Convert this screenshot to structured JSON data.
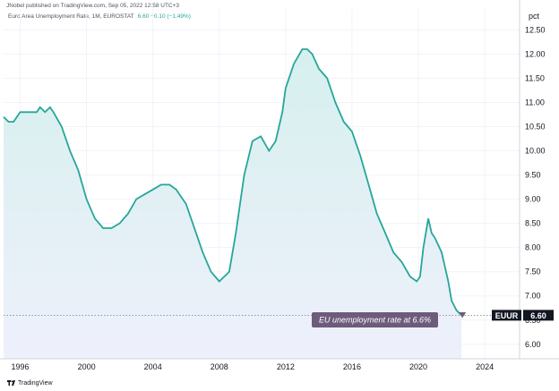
{
  "header": {
    "published": "JNobel published on TradingView.com, Sep 05, 2022 12:58 UTC+3",
    "legend_title": "Euro Area Unemployment Rate, 1M, EUROSTAT",
    "legend_values": "6.60  −0.10 (−1.49%)"
  },
  "footer": {
    "brand": "TradingView",
    "brand_icon": "tradingview-logo-icon"
  },
  "colors": {
    "line": "#26a69a",
    "fill_top": "#d6f0ee",
    "fill_bottom": "#eef0fb",
    "badge_bg": "#131722",
    "annotation_bg": "#6c5b7b"
  },
  "chart_data": {
    "type": "area",
    "ylabel": "pct",
    "ylim": [
      5.7,
      12.6
    ],
    "xlim": [
      1995.0,
      2026.1
    ],
    "y_ticks": [
      "6.00",
      "6.50",
      "7.00",
      "7.50",
      "8.00",
      "8.50",
      "9.00",
      "9.50",
      "10.00",
      "10.50",
      "11.00",
      "11.50",
      "12.00",
      "12.50"
    ],
    "x_ticks": [
      {
        "label": "1996",
        "value": 1996
      },
      {
        "label": "2000",
        "value": 2000
      },
      {
        "label": "2004",
        "value": 2004
      },
      {
        "label": "2008",
        "value": 2008
      },
      {
        "label": "2012",
        "value": 2012
      },
      {
        "label": "2016",
        "value": 2016
      },
      {
        "label": "2020",
        "value": 2020
      },
      {
        "label": "2024",
        "value": 2024
      }
    ],
    "series": [
      {
        "x": [
          1995.0,
          1995.3,
          1995.6,
          1996.0,
          1996.5,
          1997.0,
          1997.2,
          1997.5,
          1997.8,
          1998.0,
          1998.5,
          1999.0,
          1999.5,
          2000.0,
          2000.5,
          2001.0,
          2001.5,
          2002.0,
          2002.5,
          2003.0,
          2003.5,
          2004.0,
          2004.5,
          2005.0,
          2005.4,
          2006.0,
          2006.5,
          2007.0,
          2007.5,
          2008.0,
          2008.3,
          2008.6,
          2009.0,
          2009.5,
          2010.0,
          2010.5,
          2011.0,
          2011.4,
          2011.8,
          2012.0,
          2012.5,
          2013.0,
          2013.3,
          2013.6,
          2014.0,
          2014.5,
          2015.0,
          2015.5,
          2016.0,
          2016.5,
          2017.0,
          2017.5,
          2018.0,
          2018.5,
          2019.0,
          2019.5,
          2019.9,
          2020.1,
          2020.3,
          2020.6,
          2020.8,
          2021.0,
          2021.4,
          2021.8,
          2022.0,
          2022.3,
          2022.6
        ],
        "y": [
          10.7,
          10.6,
          10.6,
          10.8,
          10.8,
          10.8,
          10.9,
          10.8,
          10.9,
          10.8,
          10.5,
          10.0,
          9.6,
          9.0,
          8.6,
          8.4,
          8.4,
          8.5,
          8.7,
          9.0,
          9.1,
          9.2,
          9.3,
          9.3,
          9.2,
          8.9,
          8.4,
          7.9,
          7.5,
          7.3,
          7.4,
          7.5,
          8.3,
          9.5,
          10.2,
          10.3,
          10.0,
          10.2,
          10.8,
          11.3,
          11.8,
          12.1,
          12.1,
          12.0,
          11.7,
          11.5,
          11.0,
          10.6,
          10.4,
          9.9,
          9.3,
          8.7,
          8.3,
          7.9,
          7.7,
          7.4,
          7.3,
          7.4,
          8.0,
          8.6,
          8.3,
          8.2,
          7.9,
          7.3,
          6.9,
          6.7,
          6.6
        ]
      }
    ],
    "last_value": {
      "symbol": "EUUR",
      "value": "6.60"
    },
    "annotation": "EU unemployment rate at 6.6%",
    "grid": true
  }
}
